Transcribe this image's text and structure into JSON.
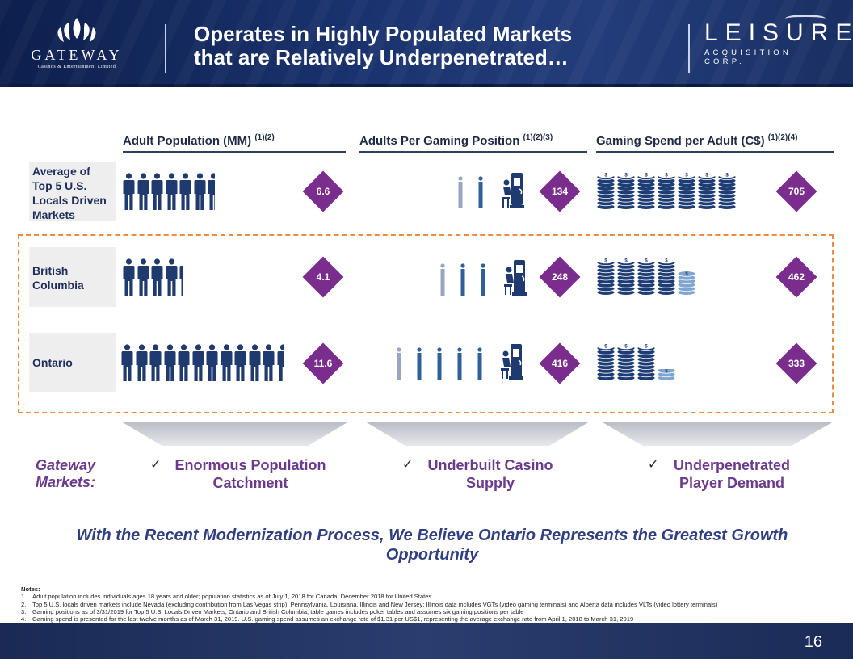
{
  "header": {
    "title_line1": "Operates in Highly Populated Markets",
    "title_line2": "that are Relatively Underpenetrated…",
    "gateway_logo": {
      "name": "GATEWAY",
      "subtitle": "Casinos & Entertainment Limited"
    },
    "leisure_logo": {
      "name": "LEISURE",
      "subtitle": "ACQUISITION CORP."
    }
  },
  "columns": [
    {
      "label": "Adult Population (MM)",
      "sup": "(1)(2)"
    },
    {
      "label": "Adults Per Gaming Position",
      "sup": "(1)(2)(3)"
    },
    {
      "label": "Gaming Spend per Adult (C$)",
      "sup": "(1)(2)(4)"
    }
  ],
  "rows": [
    {
      "label": "Average of Top 5 U.S. Locals Driven Markets",
      "population": "6.6",
      "adults_per_position": "134",
      "spend": "705"
    },
    {
      "label": "British Columbia",
      "population": "4.1",
      "adults_per_position": "248",
      "spend": "462"
    },
    {
      "label": "Ontario",
      "population": "11.6",
      "adults_per_position": "416",
      "spend": "333"
    }
  ],
  "colors": {
    "accent_purple": "#7a2d8d",
    "navy": "#1f3a6e",
    "dash_orange": "#f08a3c",
    "banner_blue": "#2f3f82"
  },
  "gateway_markets_label": "Gateway Markets:",
  "benefits": [
    {
      "check": "✓",
      "line1": "Enormous Population",
      "line2": "Catchment"
    },
    {
      "check": "✓",
      "line1": "Underbuilt Casino",
      "line2": "Supply"
    },
    {
      "check": "✓",
      "line1": "Underpenetrated",
      "line2": "Player Demand"
    }
  ],
  "banner": "With the Recent Modernization Process, We Believe Ontario Represents the Greatest Growth Opportunity",
  "notes": {
    "title": "Notes:",
    "items": [
      {
        "num": "1.",
        "text": "Adult population includes individuals ages 18 years and older; population statistics as of July 1, 2018 for Canada, December 2018 for United States"
      },
      {
        "num": "2.",
        "text": "Top 5 U.S. locals driven markets include Nevada (excluding contribution from Las Vegas strip), Pennsylvania, Louisiana, Illinois and New Jersey; Illinois data includes VGTs (video gaming terminals) and Alberta data includes VLTs (video lottery terminals)"
      },
      {
        "num": "3.",
        "text": "Gaming positions as of 3/31/2019 for Top 5 U.S. Locals Driven Markets, Ontario and British Columbia; table games includes poker tables and assumes six gaming positions per table"
      },
      {
        "num": "4.",
        "text": "Gaming spend is presented for the last twelve months as of March 31, 2019. U.S. gaming spend assumes an exchange rate of $1.31 per US$1, representing the average exchange rate from April 1, 2018 to March 31, 2019"
      }
    ]
  },
  "page_number": "16"
}
